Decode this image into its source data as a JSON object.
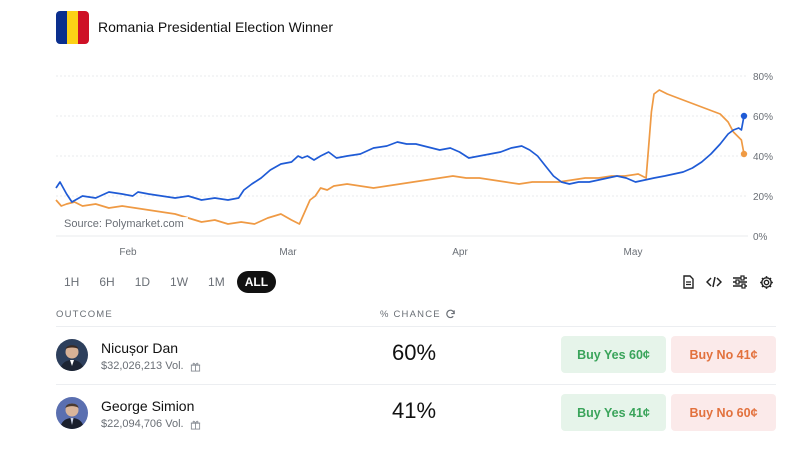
{
  "header": {
    "title": "Romania Presidential Election Winner",
    "flag_colors": [
      "#0b2f8e",
      "#fcd116",
      "#ce1126"
    ]
  },
  "chart_data": {
    "type": "line",
    "title": "",
    "x_ticks": [
      "Feb",
      "Mar",
      "Apr",
      "May"
    ],
    "y_ticks": [
      "0%",
      "20%",
      "40%",
      "60%",
      "80%"
    ],
    "ylim": [
      0,
      80
    ],
    "grid": true,
    "source": "Source: Polymarket.com",
    "series": [
      {
        "name": "Nicușor Dan",
        "color": "#1f5bd6",
        "end_value": 60,
        "points": [
          [
            0,
            24
          ],
          [
            3,
            27
          ],
          [
            8,
            21
          ],
          [
            12,
            17
          ],
          [
            20,
            20
          ],
          [
            30,
            19
          ],
          [
            40,
            22
          ],
          [
            50,
            21
          ],
          [
            58,
            20
          ],
          [
            62,
            22
          ],
          [
            70,
            21
          ],
          [
            80,
            20
          ],
          [
            90,
            19
          ],
          [
            100,
            20
          ],
          [
            110,
            18
          ],
          [
            120,
            19
          ],
          [
            130,
            18
          ],
          [
            138,
            19
          ],
          [
            142,
            23
          ],
          [
            148,
            26
          ],
          [
            155,
            29
          ],
          [
            162,
            33
          ],
          [
            170,
            36
          ],
          [
            178,
            37
          ],
          [
            183,
            40
          ],
          [
            186,
            39
          ],
          [
            190,
            40
          ],
          [
            195,
            38
          ],
          [
            200,
            40
          ],
          [
            206,
            42
          ],
          [
            212,
            39
          ],
          [
            220,
            40
          ],
          [
            230,
            41
          ],
          [
            240,
            44
          ],
          [
            250,
            45
          ],
          [
            258,
            47
          ],
          [
            265,
            46
          ],
          [
            272,
            46
          ],
          [
            278,
            45
          ],
          [
            284,
            44
          ],
          [
            290,
            43
          ],
          [
            298,
            44
          ],
          [
            305,
            42
          ],
          [
            312,
            39
          ],
          [
            320,
            40
          ],
          [
            328,
            41
          ],
          [
            336,
            42
          ],
          [
            344,
            44
          ],
          [
            352,
            45
          ],
          [
            358,
            43
          ],
          [
            364,
            40
          ],
          [
            370,
            35
          ],
          [
            376,
            30
          ],
          [
            382,
            27
          ],
          [
            388,
            26
          ],
          [
            395,
            27
          ],
          [
            403,
            27
          ],
          [
            410,
            28
          ],
          [
            417,
            29
          ],
          [
            424,
            30
          ],
          [
            431,
            29
          ],
          [
            438,
            27
          ],
          [
            445,
            28
          ],
          [
            452,
            29
          ],
          [
            460,
            30
          ],
          [
            467,
            31
          ],
          [
            474,
            32
          ],
          [
            481,
            34
          ],
          [
            488,
            37
          ],
          [
            495,
            41
          ],
          [
            502,
            46
          ],
          [
            508,
            51
          ],
          [
            512,
            53
          ],
          [
            516,
            54
          ],
          [
            518,
            53
          ],
          [
            520,
            60
          ]
        ]
      },
      {
        "name": "George Simion",
        "color": "#ef9a44",
        "end_value": 41,
        "points": [
          [
            0,
            18
          ],
          [
            4,
            15
          ],
          [
            8,
            16
          ],
          [
            14,
            17
          ],
          [
            20,
            15
          ],
          [
            30,
            16
          ],
          [
            40,
            14
          ],
          [
            50,
            15
          ],
          [
            60,
            14
          ],
          [
            70,
            13
          ],
          [
            80,
            12
          ],
          [
            90,
            11
          ],
          [
            100,
            9
          ],
          [
            110,
            7
          ],
          [
            120,
            8
          ],
          [
            130,
            6
          ],
          [
            140,
            7
          ],
          [
            150,
            6
          ],
          [
            160,
            9
          ],
          [
            170,
            11
          ],
          [
            178,
            8
          ],
          [
            184,
            6
          ],
          [
            188,
            12
          ],
          [
            192,
            18
          ],
          [
            196,
            20
          ],
          [
            200,
            24
          ],
          [
            205,
            23
          ],
          [
            210,
            25
          ],
          [
            220,
            26
          ],
          [
            230,
            25
          ],
          [
            240,
            24
          ],
          [
            250,
            25
          ],
          [
            260,
            26
          ],
          [
            270,
            27
          ],
          [
            280,
            28
          ],
          [
            290,
            29
          ],
          [
            300,
            30
          ],
          [
            310,
            29
          ],
          [
            320,
            29
          ],
          [
            330,
            28
          ],
          [
            340,
            27
          ],
          [
            350,
            26
          ],
          [
            360,
            27
          ],
          [
            370,
            27
          ],
          [
            380,
            27
          ],
          [
            390,
            28
          ],
          [
            400,
            29
          ],
          [
            410,
            29
          ],
          [
            420,
            30
          ],
          [
            430,
            30
          ],
          [
            440,
            31
          ],
          [
            446,
            29
          ],
          [
            448,
            45
          ],
          [
            450,
            62
          ],
          [
            452,
            71
          ],
          [
            456,
            73
          ],
          [
            462,
            71
          ],
          [
            470,
            69
          ],
          [
            478,
            67
          ],
          [
            486,
            65
          ],
          [
            494,
            63
          ],
          [
            502,
            61
          ],
          [
            508,
            57
          ],
          [
            512,
            52
          ],
          [
            515,
            50
          ],
          [
            518,
            48
          ],
          [
            520,
            41
          ]
        ]
      }
    ]
  },
  "time_ranges": [
    "1H",
    "6H",
    "1D",
    "1W",
    "1M",
    "ALL"
  ],
  "active_range": "ALL",
  "table": {
    "col_outcome": "OUTCOME",
    "col_chance": "% CHANCE"
  },
  "outcomes": [
    {
      "name": "Nicușor Dan",
      "volume": "$32,026,213 Vol.",
      "chance": "60%",
      "buy_yes": "Buy Yes 60¢",
      "buy_no": "Buy No 41¢"
    },
    {
      "name": "George Simion",
      "volume": "$22,094,706 Vol.",
      "chance": "41%",
      "buy_yes": "Buy Yes 41¢",
      "buy_no": "Buy No 60¢"
    }
  ],
  "icons": {
    "chance_refresh": "refresh-icon",
    "volume_gift": "gift-icon",
    "tools": [
      "document-icon",
      "code-icon",
      "sliders-icon",
      "gear-icon"
    ]
  }
}
